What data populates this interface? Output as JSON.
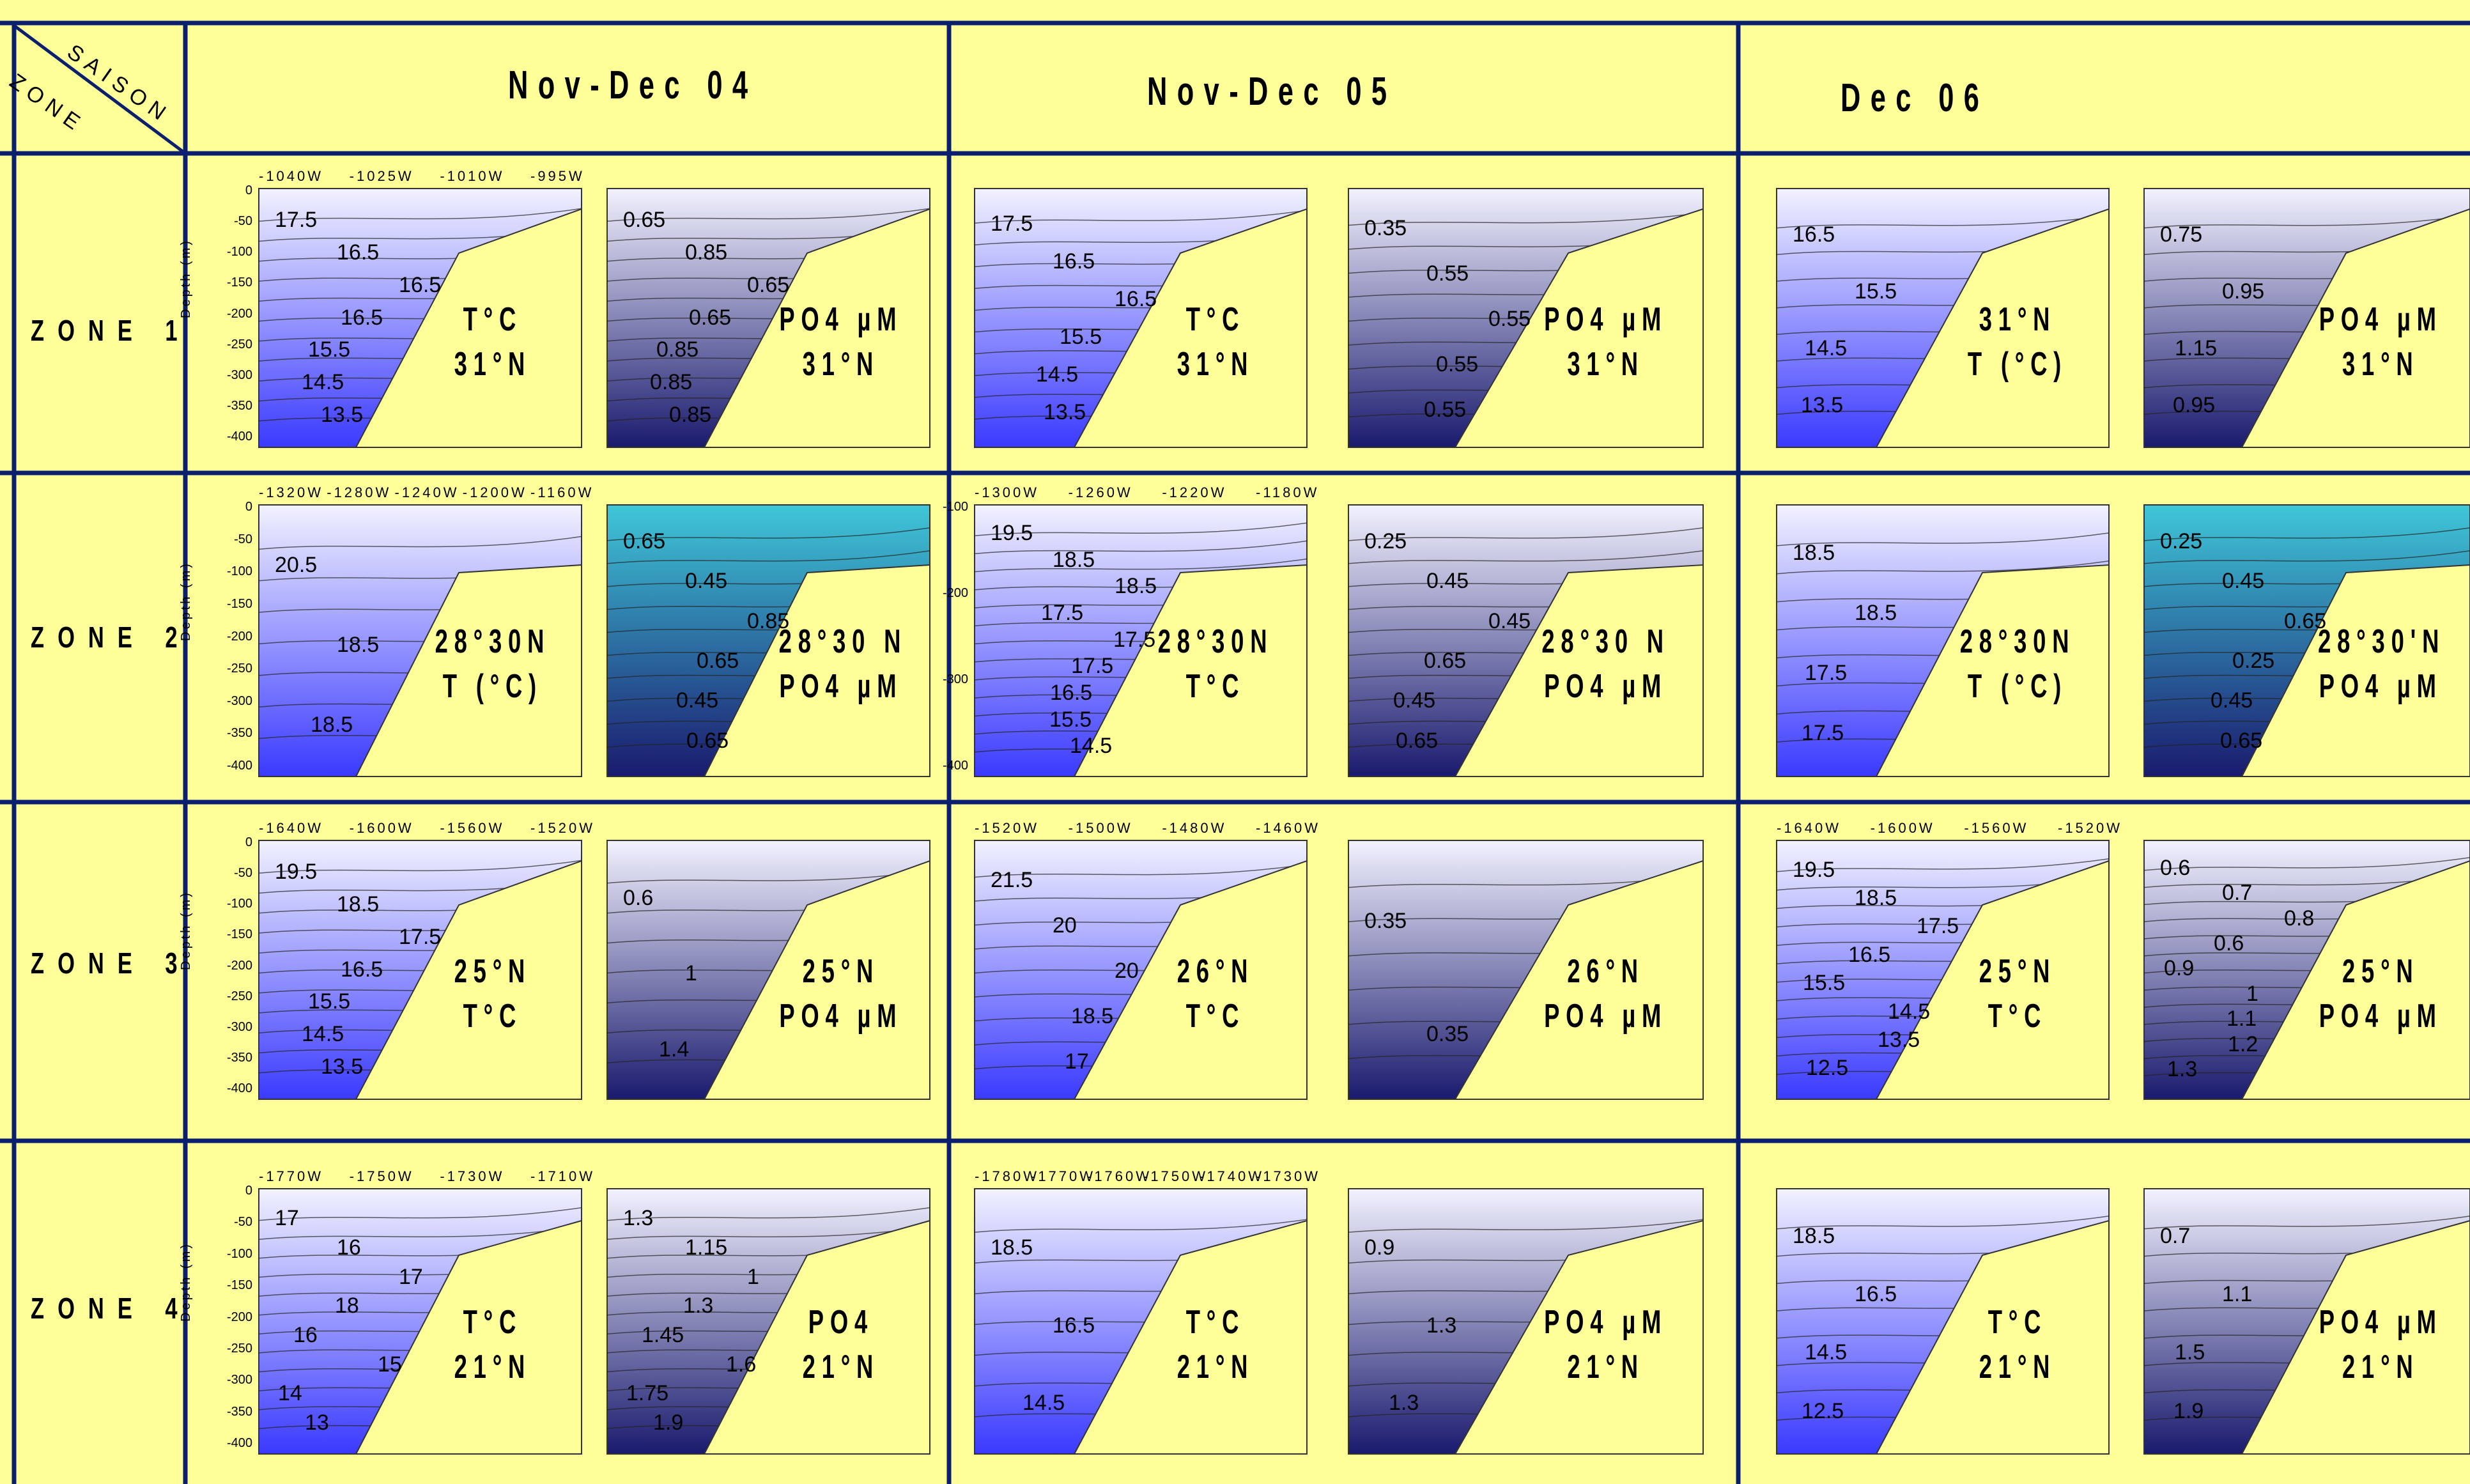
{
  "corner": {
    "saison": "SAISON",
    "zone": "ZONE"
  },
  "seasons": [
    "Nov-Dec 04",
    "Nov-Dec 05",
    "Dec 06"
  ],
  "zones": [
    "ZONE 1",
    "ZONE 2",
    "ZONE 3",
    "ZONE 4"
  ],
  "colors": {
    "background": "#ffff99",
    "grid": "#0a1f6e",
    "temperature": "#3a3aff",
    "phosphate": "#1a1a6e",
    "phosphate_z2": "#3fc7d8"
  },
  "panels": [
    {
      "zone": 1,
      "season": 1,
      "var": "T",
      "label": [
        "T°C",
        "31°N"
      ],
      "contours": [
        "17.5",
        "16.5",
        "16.5",
        "16.5",
        "15.5",
        "14.5",
        "13.5"
      ],
      "xticks": [
        "-1040W",
        "-1025W",
        "-1010W",
        "-995W"
      ],
      "yticks": [
        "0",
        "-50",
        "-100",
        "-150",
        "-200",
        "-250",
        "-300",
        "-350",
        "-400"
      ],
      "ylabel": "Depth (m)"
    },
    {
      "zone": 1,
      "season": 1,
      "var": "P",
      "label": [
        "PO4 µM",
        "31°N"
      ],
      "contours": [
        "0.65",
        "0.85",
        "0.65",
        "0.65",
        "0.85",
        "0.85",
        "0.85"
      ]
    },
    {
      "zone": 1,
      "season": 2,
      "var": "T",
      "label": [
        "T°C",
        "31°N"
      ],
      "contours": [
        "17.5",
        "16.5",
        "16.5",
        "15.5",
        "14.5",
        "13.5"
      ]
    },
    {
      "zone": 1,
      "season": 2,
      "var": "P",
      "label": [
        "PO4 µM",
        "31°N"
      ],
      "contours": [
        "0.35",
        "0.55",
        "0.55",
        "0.55",
        "0.55"
      ]
    },
    {
      "zone": 1,
      "season": 3,
      "var": "T",
      "label": [
        "31°N",
        "T (°C)"
      ],
      "contours": [
        "16.5",
        "15.5",
        "14.5",
        "13.5"
      ]
    },
    {
      "zone": 1,
      "season": 3,
      "var": "P",
      "label": [
        "PO4 µM",
        "31°N"
      ],
      "contours": [
        "0.75",
        "0.95",
        "1.15",
        "0.95"
      ]
    },
    {
      "zone": 2,
      "season": 1,
      "var": "T",
      "label": [
        "28°30N",
        "T (°C)"
      ],
      "contours": [
        "20.5",
        "18.5",
        "18.5"
      ],
      "xticks": [
        "-1320W",
        "-1280W",
        "-1240W",
        "-1200W",
        "-1160W"
      ],
      "yticks": [
        "0",
        "-50",
        "-100",
        "-150",
        "-200",
        "-250",
        "-300",
        "-350",
        "-400"
      ],
      "ylabel": "Depth (m)"
    },
    {
      "zone": 2,
      "season": 1,
      "var": "P",
      "label": [
        "28°30 N",
        "PO4 µM"
      ],
      "contours": [
        "0.65",
        "0.45",
        "0.85",
        "0.65",
        "0.45",
        "0.65"
      ]
    },
    {
      "zone": 2,
      "season": 2,
      "var": "T",
      "label": [
        "28°30N",
        "T°C"
      ],
      "contours": [
        "19.5",
        "18.5",
        "18.5",
        "17.5",
        "17.5",
        "17.5",
        "16.5",
        "15.5",
        "14.5"
      ],
      "xticks": [
        "-1300W",
        "-1260W",
        "-1220W",
        "-1180W"
      ],
      "yticks": [
        "-100",
        "-200",
        "-300",
        "-400"
      ]
    },
    {
      "zone": 2,
      "season": 2,
      "var": "P",
      "label": [
        "28°30 N",
        "PO4 µM"
      ],
      "contours": [
        "0.25",
        "0.45",
        "0.45",
        "0.65",
        "0.45",
        "0.65"
      ]
    },
    {
      "zone": 2,
      "season": 3,
      "var": "T",
      "label": [
        "28°30N",
        "T (°C)"
      ],
      "contours": [
        "18.5",
        "18.5",
        "17.5",
        "17.5"
      ]
    },
    {
      "zone": 2,
      "season": 3,
      "var": "P",
      "label": [
        "28°30'N",
        "PO4 µM"
      ],
      "contours": [
        "0.25",
        "0.45",
        "0.65",
        "0.25",
        "0.45",
        "0.65"
      ]
    },
    {
      "zone": 3,
      "season": 1,
      "var": "T",
      "label": [
        "25°N",
        "T°C"
      ],
      "contours": [
        "19.5",
        "18.5",
        "17.5",
        "16.5",
        "15.5",
        "14.5",
        "13.5"
      ],
      "xticks": [
        "-1640W",
        "-1600W",
        "-1560W",
        "-1520W"
      ],
      "yticks": [
        "0",
        "-50",
        "-100",
        "-150",
        "-200",
        "-250",
        "-300",
        "-350",
        "-400"
      ],
      "ylabel": "Depth (m)"
    },
    {
      "zone": 3,
      "season": 1,
      "var": "P",
      "label": [
        "25°N",
        "PO4 µM"
      ],
      "contours": [
        "0.6",
        "1",
        "1.4"
      ]
    },
    {
      "zone": 3,
      "season": 2,
      "var": "T",
      "label": [
        "26°N",
        "T°C"
      ],
      "contours": [
        "21.5",
        "20",
        "20",
        "18.5",
        "17"
      ],
      "xticks": [
        "-1520W",
        "-1500W",
        "-1480W",
        "-1460W"
      ]
    },
    {
      "zone": 3,
      "season": 2,
      "var": "P",
      "label": [
        "26°N",
        "PO4 µM"
      ],
      "contours": [
        "0.35",
        "0.35"
      ]
    },
    {
      "zone": 3,
      "season": 3,
      "var": "T",
      "label": [
        "25°N",
        "T°C"
      ],
      "contours": [
        "19.5",
        "18.5",
        "17.5",
        "16.5",
        "15.5",
        "14.5",
        "13.5",
        "12.5"
      ],
      "xticks": [
        "-1640W",
        "-1600W",
        "-1560W",
        "-1520W"
      ]
    },
    {
      "zone": 3,
      "season": 3,
      "var": "P",
      "label": [
        "25°N",
        "PO4 µM"
      ],
      "contours": [
        "0.6",
        "0.7",
        "0.8",
        "0.6",
        "0.9",
        "1",
        "1.1",
        "1.2",
        "1.3"
      ]
    },
    {
      "zone": 4,
      "season": 1,
      "var": "T",
      "label": [
        "T°C",
        "21°N"
      ],
      "contours": [
        "17",
        "16",
        "17",
        "18",
        "16",
        "15",
        "14",
        "13"
      ],
      "xticks": [
        "-1770W",
        "-1750W",
        "-1730W",
        "-1710W"
      ],
      "yticks": [
        "0",
        "-50",
        "-100",
        "-150",
        "-200",
        "-250",
        "-300",
        "-350",
        "-400"
      ],
      "ylabel": "Depth (m)"
    },
    {
      "zone": 4,
      "season": 1,
      "var": "P",
      "label": [
        "PO4",
        "21°N"
      ],
      "contours": [
        "1.3",
        "1.15",
        "1",
        "1.3",
        "1.45",
        "1.6",
        "1.75",
        "1.9"
      ]
    },
    {
      "zone": 4,
      "season": 2,
      "var": "T",
      "label": [
        "T°C",
        "21°N"
      ],
      "contours": [
        "18.5",
        "16.5",
        "14.5"
      ],
      "xticks": [
        "-1780W",
        "-1770W",
        "-1760W",
        "-1750W",
        "-1740W",
        "-1730W"
      ]
    },
    {
      "zone": 4,
      "season": 2,
      "var": "P",
      "label": [
        "PO4 µM",
        "21°N"
      ],
      "contours": [
        "0.9",
        "1.3",
        "1.3"
      ]
    },
    {
      "zone": 4,
      "season": 3,
      "var": "T",
      "label": [
        "T°C",
        "21°N"
      ],
      "contours": [
        "18.5",
        "16.5",
        "14.5",
        "12.5"
      ]
    },
    {
      "zone": 4,
      "season": 3,
      "var": "P",
      "label": [
        "PO4 µM",
        "21°N"
      ],
      "contours": [
        "0.7",
        "1.1",
        "1.5",
        "1.9"
      ]
    }
  ]
}
